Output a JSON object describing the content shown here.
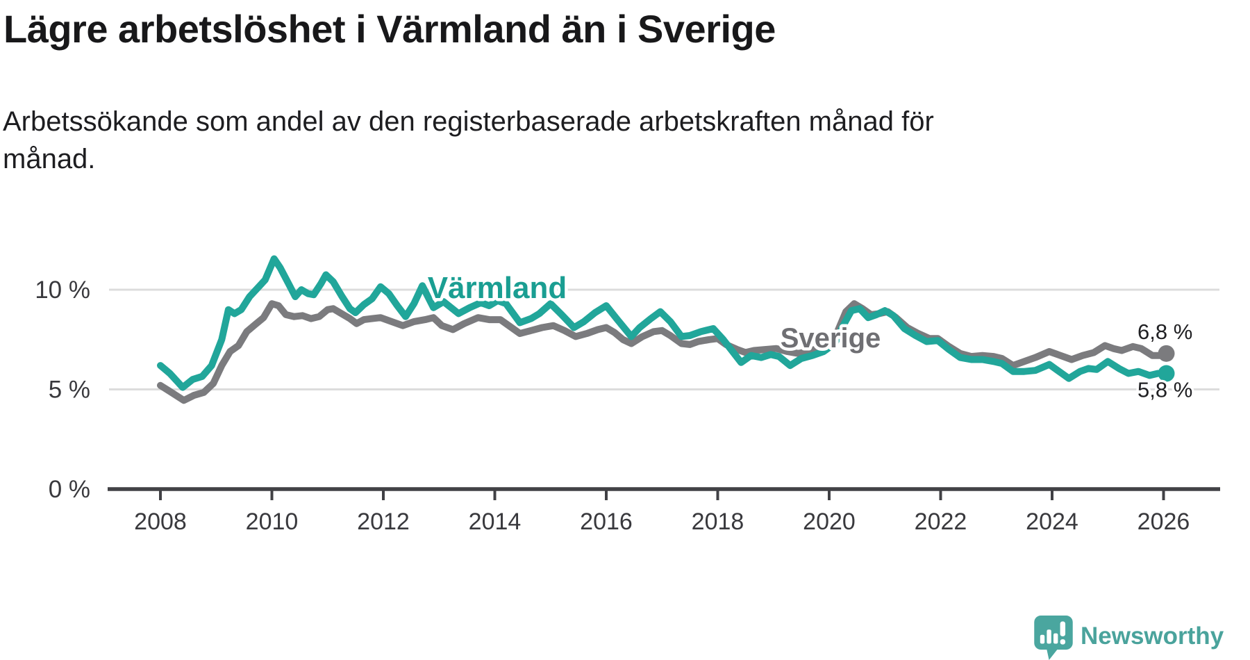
{
  "title": "Lägre arbetslöshet i Värmland än i Sverige",
  "subtitle": "Arbetssökande som andel av den registerbaserade arbetskraften månad för månad.",
  "subtitle_lines": [
    "Arbetssökande som andel av den registerbaserade arbetskraften månad för",
    "månad."
  ],
  "branding": {
    "logo_text": "Newsworthy",
    "logo_icon": "newsworthy-speech-bubble-bar-chart-icon",
    "logo_color": "#4aa69f"
  },
  "colors": {
    "background": "#ffffff",
    "title_text": "#18181a",
    "subtitle_text": "#1d1d20",
    "tick_text": "#39393d",
    "gridline": "#dcdcdc",
    "axis": "#414145",
    "varmland_teal": "#21a69a",
    "sverige_gray": "#7b7b7e",
    "end_label_text": "#202023"
  },
  "chart_data": {
    "type": "line",
    "title": "Lägre arbetslöshet i Värmland än i Sverige",
    "xlabel": "",
    "ylabel": "",
    "y_unit": "%",
    "frequency": "monthly",
    "grid": "horizontal-only",
    "legend": "inline-series-labels",
    "x_range": [
      2007.1,
      2027.0
    ],
    "y_range": [
      0,
      12.2
    ],
    "x_ticks": [
      "2008",
      "2010",
      "2012",
      "2014",
      "2016",
      "2018",
      "2020",
      "2022",
      "2024",
      "2026"
    ],
    "y_ticks": [
      {
        "value": 0,
        "label": "0 %"
      },
      {
        "value": 5,
        "label": "5 %"
      },
      {
        "value": 10,
        "label": "10 %"
      }
    ],
    "series": [
      {
        "name": "Sverige",
        "color": "#7b7b7e",
        "label_color": "#6f6f73",
        "end_value": 6.8,
        "end_label": "6,8 %",
        "points": [
          [
            2008.0,
            5.2
          ],
          [
            2008.17,
            4.9
          ],
          [
            2008.42,
            4.45
          ],
          [
            2008.6,
            4.7
          ],
          [
            2008.78,
            4.85
          ],
          [
            2008.95,
            5.3
          ],
          [
            2009.1,
            6.2
          ],
          [
            2009.25,
            6.9
          ],
          [
            2009.4,
            7.2
          ],
          [
            2009.55,
            7.9
          ],
          [
            2009.7,
            8.25
          ],
          [
            2009.85,
            8.6
          ],
          [
            2010.0,
            9.3
          ],
          [
            2010.12,
            9.2
          ],
          [
            2010.25,
            8.75
          ],
          [
            2010.4,
            8.65
          ],
          [
            2010.55,
            8.7
          ],
          [
            2010.7,
            8.55
          ],
          [
            2010.85,
            8.65
          ],
          [
            2011.0,
            9.0
          ],
          [
            2011.1,
            9.05
          ],
          [
            2011.25,
            8.8
          ],
          [
            2011.4,
            8.55
          ],
          [
            2011.52,
            8.3
          ],
          [
            2011.65,
            8.5
          ],
          [
            2011.8,
            8.55
          ],
          [
            2011.95,
            8.6
          ],
          [
            2012.15,
            8.4
          ],
          [
            2012.35,
            8.2
          ],
          [
            2012.55,
            8.4
          ],
          [
            2012.75,
            8.5
          ],
          [
            2012.9,
            8.6
          ],
          [
            2013.05,
            8.2
          ],
          [
            2013.25,
            8.0
          ],
          [
            2013.45,
            8.3
          ],
          [
            2013.7,
            8.6
          ],
          [
            2013.9,
            8.5
          ],
          [
            2014.1,
            8.5
          ],
          [
            2014.3,
            8.1
          ],
          [
            2014.45,
            7.8
          ],
          [
            2014.65,
            7.95
          ],
          [
            2014.85,
            8.1
          ],
          [
            2015.05,
            8.2
          ],
          [
            2015.25,
            7.95
          ],
          [
            2015.45,
            7.65
          ],
          [
            2015.65,
            7.8
          ],
          [
            2015.85,
            8.0
          ],
          [
            2016.0,
            8.1
          ],
          [
            2016.15,
            7.85
          ],
          [
            2016.3,
            7.5
          ],
          [
            2016.45,
            7.3
          ],
          [
            2016.65,
            7.65
          ],
          [
            2016.85,
            7.9
          ],
          [
            2017.0,
            7.95
          ],
          [
            2017.15,
            7.7
          ],
          [
            2017.35,
            7.3
          ],
          [
            2017.5,
            7.25
          ],
          [
            2017.65,
            7.4
          ],
          [
            2017.85,
            7.5
          ],
          [
            2018.0,
            7.55
          ],
          [
            2018.15,
            7.25
          ],
          [
            2018.35,
            7.0
          ],
          [
            2018.5,
            6.85
          ],
          [
            2018.65,
            6.95
          ],
          [
            2018.85,
            7.0
          ],
          [
            2019.05,
            7.05
          ],
          [
            2019.25,
            6.9
          ],
          [
            2019.45,
            6.8
          ],
          [
            2019.6,
            6.9
          ],
          [
            2019.8,
            7.05
          ],
          [
            2020.0,
            7.3
          ],
          [
            2020.15,
            7.9
          ],
          [
            2020.3,
            8.9
          ],
          [
            2020.45,
            9.3
          ],
          [
            2020.6,
            9.05
          ],
          [
            2020.75,
            8.75
          ],
          [
            2020.9,
            8.8
          ],
          [
            2021.05,
            8.9
          ],
          [
            2021.2,
            8.6
          ],
          [
            2021.4,
            8.1
          ],
          [
            2021.6,
            7.8
          ],
          [
            2021.8,
            7.55
          ],
          [
            2021.95,
            7.55
          ],
          [
            2022.15,
            7.15
          ],
          [
            2022.35,
            6.8
          ],
          [
            2022.55,
            6.65
          ],
          [
            2022.75,
            6.7
          ],
          [
            2022.95,
            6.65
          ],
          [
            2023.1,
            6.55
          ],
          [
            2023.3,
            6.2
          ],
          [
            2023.5,
            6.4
          ],
          [
            2023.7,
            6.6
          ],
          [
            2023.95,
            6.9
          ],
          [
            2024.15,
            6.7
          ],
          [
            2024.35,
            6.5
          ],
          [
            2024.55,
            6.7
          ],
          [
            2024.75,
            6.85
          ],
          [
            2024.95,
            7.2
          ],
          [
            2025.1,
            7.05
          ],
          [
            2025.25,
            6.95
          ],
          [
            2025.45,
            7.15
          ],
          [
            2025.6,
            7.05
          ],
          [
            2025.8,
            6.7
          ],
          [
            2025.95,
            6.7
          ],
          [
            2026.05,
            6.8
          ]
        ]
      },
      {
        "name": "Värmland",
        "color": "#21a69a",
        "label_color": "#1a9e92",
        "end_value": 5.8,
        "end_label": "5,8 %",
        "points": [
          [
            2008.0,
            6.2
          ],
          [
            2008.17,
            5.8
          ],
          [
            2008.4,
            5.1
          ],
          [
            2008.58,
            5.5
          ],
          [
            2008.75,
            5.65
          ],
          [
            2008.92,
            6.2
          ],
          [
            2009.1,
            7.5
          ],
          [
            2009.22,
            9.0
          ],
          [
            2009.33,
            8.8
          ],
          [
            2009.45,
            9.0
          ],
          [
            2009.6,
            9.65
          ],
          [
            2009.75,
            10.1
          ],
          [
            2009.88,
            10.5
          ],
          [
            2010.04,
            11.55
          ],
          [
            2010.15,
            11.1
          ],
          [
            2010.3,
            10.3
          ],
          [
            2010.42,
            9.65
          ],
          [
            2010.53,
            10.0
          ],
          [
            2010.65,
            9.8
          ],
          [
            2010.75,
            9.75
          ],
          [
            2010.88,
            10.3
          ],
          [
            2010.97,
            10.75
          ],
          [
            2011.1,
            10.4
          ],
          [
            2011.25,
            9.7
          ],
          [
            2011.4,
            9.05
          ],
          [
            2011.5,
            8.85
          ],
          [
            2011.65,
            9.25
          ],
          [
            2011.8,
            9.55
          ],
          [
            2011.95,
            10.15
          ],
          [
            2012.1,
            9.8
          ],
          [
            2012.25,
            9.2
          ],
          [
            2012.4,
            8.65
          ],
          [
            2012.55,
            9.3
          ],
          [
            2012.7,
            10.2
          ],
          [
            2012.9,
            9.1
          ],
          [
            2013.08,
            9.4
          ],
          [
            2013.35,
            8.8
          ],
          [
            2013.55,
            9.1
          ],
          [
            2013.75,
            9.35
          ],
          [
            2013.9,
            9.2
          ],
          [
            2014.05,
            9.45
          ],
          [
            2014.2,
            9.3
          ],
          [
            2014.45,
            8.35
          ],
          [
            2014.65,
            8.55
          ],
          [
            2014.8,
            8.8
          ],
          [
            2015.0,
            9.3
          ],
          [
            2015.2,
            8.75
          ],
          [
            2015.42,
            8.1
          ],
          [
            2015.6,
            8.4
          ],
          [
            2015.8,
            8.85
          ],
          [
            2016.0,
            9.2
          ],
          [
            2016.2,
            8.5
          ],
          [
            2016.45,
            7.65
          ],
          [
            2016.6,
            8.1
          ],
          [
            2016.8,
            8.55
          ],
          [
            2016.97,
            8.9
          ],
          [
            2017.15,
            8.4
          ],
          [
            2017.35,
            7.65
          ],
          [
            2017.5,
            7.7
          ],
          [
            2017.7,
            7.9
          ],
          [
            2017.92,
            8.05
          ],
          [
            2018.1,
            7.5
          ],
          [
            2018.42,
            6.35
          ],
          [
            2018.6,
            6.7
          ],
          [
            2018.78,
            6.6
          ],
          [
            2018.95,
            6.75
          ],
          [
            2019.1,
            6.65
          ],
          [
            2019.3,
            6.2
          ],
          [
            2019.5,
            6.55
          ],
          [
            2019.7,
            6.7
          ],
          [
            2019.9,
            6.9
          ],
          [
            2020.1,
            7.3
          ],
          [
            2020.25,
            8.2
          ],
          [
            2020.4,
            8.95
          ],
          [
            2020.55,
            9.05
          ],
          [
            2020.7,
            8.6
          ],
          [
            2020.85,
            8.75
          ],
          [
            2021.0,
            8.95
          ],
          [
            2021.15,
            8.7
          ],
          [
            2021.35,
            8.05
          ],
          [
            2021.55,
            7.7
          ],
          [
            2021.75,
            7.4
          ],
          [
            2021.95,
            7.45
          ],
          [
            2022.15,
            7.0
          ],
          [
            2022.35,
            6.6
          ],
          [
            2022.55,
            6.5
          ],
          [
            2022.75,
            6.5
          ],
          [
            2022.95,
            6.4
          ],
          [
            2023.1,
            6.3
          ],
          [
            2023.3,
            5.9
          ],
          [
            2023.5,
            5.9
          ],
          [
            2023.7,
            5.95
          ],
          [
            2023.95,
            6.25
          ],
          [
            2024.1,
            5.95
          ],
          [
            2024.3,
            5.55
          ],
          [
            2024.5,
            5.9
          ],
          [
            2024.65,
            6.05
          ],
          [
            2024.8,
            6.0
          ],
          [
            2025.0,
            6.4
          ],
          [
            2025.2,
            6.05
          ],
          [
            2025.37,
            5.8
          ],
          [
            2025.55,
            5.9
          ],
          [
            2025.75,
            5.7
          ],
          [
            2025.9,
            5.8
          ],
          [
            2026.05,
            5.8
          ]
        ]
      }
    ]
  }
}
